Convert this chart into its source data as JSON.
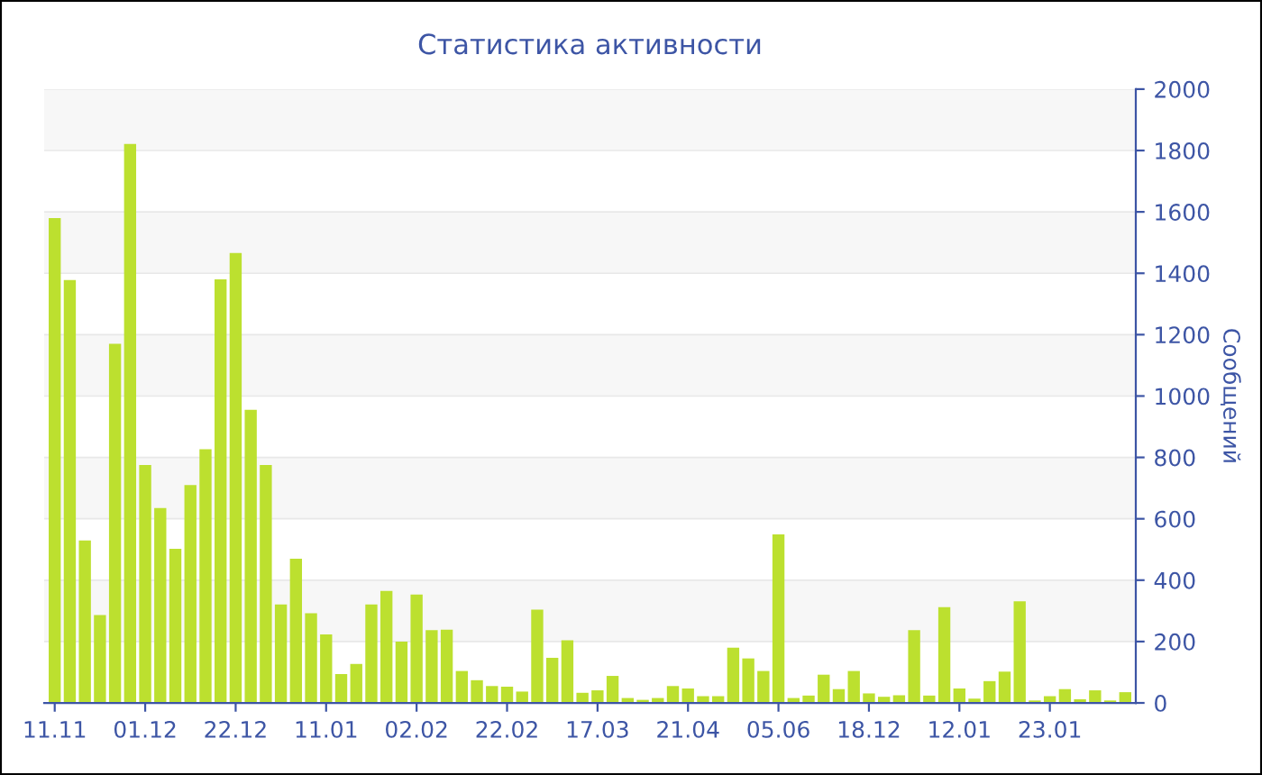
{
  "chart_data": {
    "type": "bar",
    "title": "Статистика активности",
    "ylabel": "Сообщений",
    "categories": [
      "11.11",
      null,
      null,
      null,
      null,
      null,
      "01.12",
      null,
      null,
      null,
      null,
      null,
      "22.12",
      null,
      null,
      null,
      null,
      null,
      "11.01",
      null,
      null,
      null,
      null,
      null,
      "02.02",
      null,
      null,
      null,
      null,
      null,
      "22.02",
      null,
      null,
      null,
      null,
      null,
      "17.03",
      null,
      null,
      null,
      null,
      null,
      "21.04",
      null,
      null,
      null,
      null,
      null,
      "05.06",
      null,
      null,
      null,
      null,
      null,
      "18.12",
      null,
      null,
      null,
      null,
      null,
      "12.01",
      null,
      null,
      null,
      null,
      null,
      "23.01",
      null,
      null,
      null,
      null,
      null
    ],
    "values": [
      1580,
      1378,
      529,
      286,
      1170,
      1821,
      775,
      635,
      502,
      710,
      827,
      1380,
      1466,
      955,
      775,
      321,
      470,
      292,
      223,
      94,
      127,
      321,
      365,
      200,
      353,
      237,
      239,
      104,
      74,
      55,
      53,
      37,
      304,
      147,
      204,
      33,
      41,
      88,
      16,
      10,
      16,
      55,
      47,
      22,
      22,
      180,
      145,
      104,
      549,
      16,
      24,
      92,
      45,
      104,
      31,
      20,
      25,
      237,
      24,
      312,
      47,
      14,
      71,
      102,
      331,
      8,
      22,
      45,
      12,
      41,
      8,
      35
    ],
    "color": "#bce02f",
    "ylim": [
      0,
      2000
    ],
    "yticks": [
      0,
      200,
      400,
      600,
      800,
      1000,
      1200,
      1400,
      1600,
      1800,
      2000
    ],
    "grid": "y"
  }
}
